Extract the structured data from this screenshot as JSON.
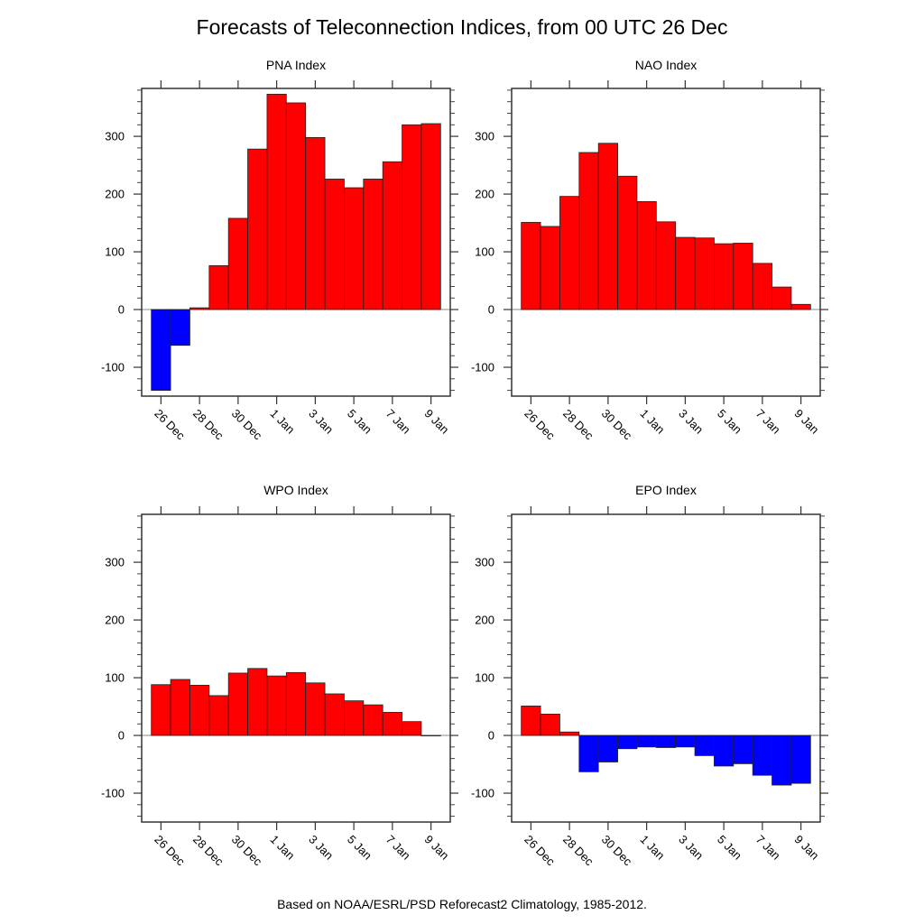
{
  "title": "Forecasts of Teleconnection Indices, from 00 UTC 26 Dec",
  "footer": "Based on NOAA/ESRL/PSD Reforecast2 Climatology, 1985-2012.",
  "colors": {
    "positive": "#ff0000",
    "negative": "#0000ff",
    "edge": "#222222",
    "frame": "#333333",
    "zero_line": "#888888"
  },
  "chart_data": [
    {
      "type": "bar",
      "title": "PNA Index",
      "categories": [
        "26 Dec",
        "27 Dec",
        "28 Dec",
        "29 Dec",
        "30 Dec",
        "31 Dec",
        "1 Jan",
        "2 Jan",
        "3 Jan",
        "4 Jan",
        "5 Jan",
        "6 Jan",
        "7 Jan",
        "8 Jan",
        "9 Jan"
      ],
      "values": [
        -140,
        -62,
        3,
        76,
        158,
        278,
        373,
        358,
        298,
        226,
        211,
        226,
        256,
        320,
        322
      ],
      "xticks": [
        "26 Dec",
        "28 Dec",
        "30 Dec",
        "1 Jan",
        "3 Jan",
        "5 Jan",
        "7 Jan",
        "9 Jan"
      ],
      "yticks": [
        -100,
        0,
        100,
        200,
        300
      ],
      "ylim": [
        -150,
        383
      ],
      "xlabel": "",
      "ylabel": "",
      "grid": false
    },
    {
      "type": "bar",
      "title": "NAO Index",
      "categories": [
        "26 Dec",
        "27 Dec",
        "28 Dec",
        "29 Dec",
        "30 Dec",
        "31 Dec",
        "1 Jan",
        "2 Jan",
        "3 Jan",
        "4 Jan",
        "5 Jan",
        "6 Jan",
        "7 Jan",
        "8 Jan",
        "9 Jan"
      ],
      "values": [
        151,
        144,
        196,
        272,
        288,
        231,
        187,
        152,
        125,
        124,
        114,
        115,
        80,
        39,
        9
      ],
      "xticks": [
        "26 Dec",
        "28 Dec",
        "30 Dec",
        "1 Jan",
        "3 Jan",
        "5 Jan",
        "7 Jan",
        "9 Jan"
      ],
      "yticks": [
        -100,
        0,
        100,
        200,
        300
      ],
      "ylim": [
        -150,
        383
      ],
      "xlabel": "",
      "ylabel": "",
      "grid": false
    },
    {
      "type": "bar",
      "title": "WPO Index",
      "categories": [
        "26 Dec",
        "27 Dec",
        "28 Dec",
        "29 Dec",
        "30 Dec",
        "31 Dec",
        "1 Jan",
        "2 Jan",
        "3 Jan",
        "4 Jan",
        "5 Jan",
        "6 Jan",
        "7 Jan",
        "8 Jan",
        "9 Jan"
      ],
      "values": [
        88,
        97,
        87,
        69,
        108,
        116,
        103,
        109,
        91,
        72,
        60,
        53,
        40,
        24,
        -0.5
      ],
      "xticks": [
        "26 Dec",
        "28 Dec",
        "30 Dec",
        "1 Jan",
        "3 Jan",
        "5 Jan",
        "7 Jan",
        "9 Jan"
      ],
      "yticks": [
        -100,
        0,
        100,
        200,
        300
      ],
      "ylim": [
        -150,
        383
      ],
      "xlabel": "",
      "ylabel": "",
      "grid": false
    },
    {
      "type": "bar",
      "title": "EPO Index",
      "categories": [
        "26 Dec",
        "27 Dec",
        "28 Dec",
        "29 Dec",
        "30 Dec",
        "31 Dec",
        "1 Jan",
        "2 Jan",
        "3 Jan",
        "4 Jan",
        "5 Jan",
        "6 Jan",
        "7 Jan",
        "8 Jan",
        "9 Jan"
      ],
      "values": [
        51,
        37,
        6,
        -63,
        -46,
        -23,
        -20,
        -21,
        -20,
        -35,
        -53,
        -49,
        -69,
        -86,
        -83
      ],
      "xticks": [
        "26 Dec",
        "28 Dec",
        "30 Dec",
        "1 Jan",
        "3 Jan",
        "5 Jan",
        "7 Jan",
        "9 Jan"
      ],
      "yticks": [
        -100,
        0,
        100,
        200,
        300
      ],
      "ylim": [
        -150,
        383
      ],
      "xlabel": "",
      "ylabel": "",
      "grid": false
    }
  ]
}
